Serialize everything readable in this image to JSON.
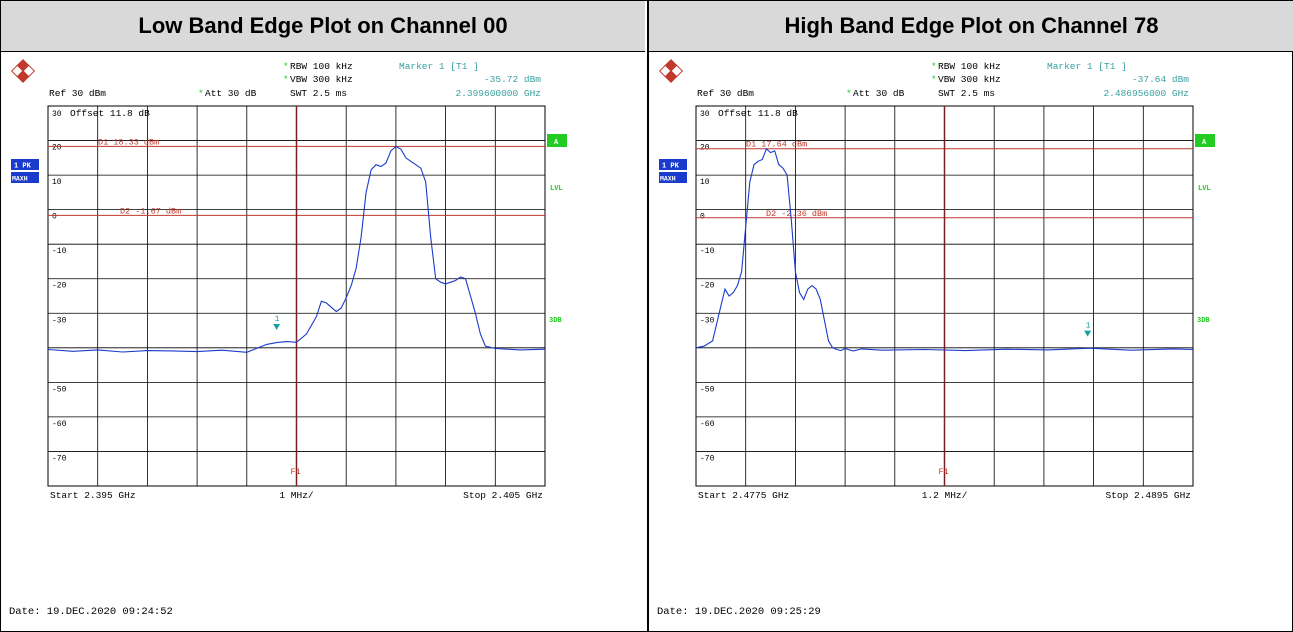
{
  "panels": [
    {
      "title": "Low Band Edge Plot on Channel 00",
      "header": {
        "rbw": "RBW 100 kHz",
        "vbw": "VBW 300 kHz",
        "swt": "SWT 2.5 ms",
        "ref": "Ref  30 dBm",
        "att": "Att  30 dB",
        "marker_title": "Marker 1 [T1 ]",
        "marker_level": "-35.72 dBm",
        "marker_freq": "2.399600000 GHz",
        "offset": "Offset  11.8 dB"
      },
      "side_labels": {
        "trace": "1 PK",
        "mode": "MAXH",
        "a": "A",
        "lvl": "LVL",
        "db3": "3DB"
      },
      "footer": {
        "start": "Start 2.395 GHz",
        "span": "1 MHz/",
        "stop": "Stop 2.405 GHz"
      },
      "date": "Date: 19.DEC.2020  09:24:52",
      "line_labels": {
        "d1": "D1  18.33 dBm",
        "d2": "D2  -1.67 dBm",
        "f1": "F1",
        "marker": "1"
      },
      "colors": {
        "trace": "#1a3bcc",
        "lines": "#c0392b",
        "marker": "#1aa0a0",
        "info": "#3aa0a0",
        "green": "#22cc22"
      },
      "chart_data": {
        "type": "line",
        "title": "Low Band Edge Plot on Channel 00",
        "x_unit": "GHz",
        "xlim": [
          2.395,
          2.405
        ],
        "ylim": [
          -80,
          30
        ],
        "y_ticks": [
          30,
          20,
          10,
          0,
          -10,
          -20,
          -30,
          -50,
          -60,
          -70
        ],
        "lines": {
          "D1": 18.33,
          "D2": -1.67,
          "F1_x": 2.4
        },
        "marker": {
          "x": 2.3996,
          "y": -35.72
        },
        "series": [
          {
            "x": [
              2.395,
              2.3955,
              2.396,
              2.3965,
              2.397,
              2.3975,
              2.398,
              2.3985,
              2.399,
              2.3994,
              2.3996,
              2.3998,
              2.4,
              2.4002,
              2.4004,
              2.4005,
              2.4006,
              2.4008,
              2.4009,
              2.401,
              2.4011,
              2.4012,
              2.4013,
              2.4014,
              2.4015,
              2.4016,
              2.4017,
              2.4018,
              2.4019,
              2.402,
              2.4021,
              2.4022,
              2.4023,
              2.4024,
              2.4025,
              2.4026,
              2.4027,
              2.4028,
              2.4029,
              2.403,
              2.4031,
              2.4032,
              2.4033,
              2.4034,
              2.4035,
              2.4036,
              2.4037,
              2.4038,
              2.404,
              2.4045,
              2.405
            ],
            "y": [
              -40.5,
              -41,
              -40.6,
              -41.2,
              -40.8,
              -40.9,
              -41.1,
              -40.7,
              -41.3,
              -39,
              -38.5,
              -38.2,
              -38.4,
              -36,
              -31,
              -26.5,
              -27,
              -29.5,
              -28.5,
              -25.5,
              -22,
              -17,
              -8,
              5,
              11.5,
              13,
              12.5,
              13.5,
              17,
              18.3,
              17.5,
              15,
              14,
              13,
              12,
              8,
              -8,
              -20,
              -21,
              -21.5,
              -21,
              -20.5,
              -19.5,
              -20,
              -25,
              -30,
              -36,
              -39.5,
              -40.2,
              -40.6,
              -40.4
            ]
          }
        ]
      }
    },
    {
      "title": "High Band Edge Plot on Channel 78",
      "header": {
        "rbw": "RBW 100 kHz",
        "vbw": "VBW 300 kHz",
        "swt": "SWT 2.5 ms",
        "ref": "Ref  30 dBm",
        "att": "Att  30 dB",
        "marker_title": "Marker 1 [T1 ]",
        "marker_level": "-37.64 dBm",
        "marker_freq": "2.486956000 GHz",
        "offset": "Offset  11.8 dB"
      },
      "side_labels": {
        "trace": "1 PK",
        "mode": "MAXH",
        "a": "A",
        "lvl": "LVL",
        "db3": "3DB"
      },
      "footer": {
        "start": "Start 2.4775 GHz",
        "span": "1.2 MHz/",
        "stop": "Stop 2.4895 GHz"
      },
      "date": "Date: 19.DEC.2020  09:25:29",
      "line_labels": {
        "d1": "D1  17.64 dBm",
        "d2": "D2  -2.36 dBm",
        "f1": "F1",
        "marker": "1"
      },
      "colors": {
        "trace": "#1a3bcc",
        "lines": "#c0392b",
        "marker": "#1aa0a0",
        "info": "#3aa0a0",
        "green": "#22cc22"
      },
      "chart_data": {
        "type": "line",
        "title": "High Band Edge Plot on Channel 78",
        "x_unit": "GHz",
        "xlim": [
          2.4775,
          2.4895
        ],
        "ylim": [
          -80,
          30
        ],
        "y_ticks": [
          30,
          20,
          10,
          0,
          -10,
          -20,
          -30,
          -50,
          -60,
          -70
        ],
        "lines": {
          "D1": 17.64,
          "D2": -2.36,
          "F1_x": 2.4835
        },
        "marker": {
          "x": 2.486956,
          "y": -37.64
        },
        "series": [
          {
            "x": [
              2.4775,
              2.4777,
              2.4779,
              2.478,
              2.4781,
              2.4782,
              2.4783,
              2.4784,
              2.4785,
              2.4786,
              2.4787,
              2.4788,
              2.4789,
              2.479,
              2.4791,
              2.4792,
              2.4793,
              2.4794,
              2.4795,
              2.4796,
              2.4797,
              2.4798,
              2.4799,
              2.48,
              2.4801,
              2.4802,
              2.4803,
              2.4804,
              2.4805,
              2.4806,
              2.4807,
              2.4808,
              2.4809,
              2.481,
              2.4811,
              2.4812,
              2.4813,
              2.4815,
              2.482,
              2.483,
              2.484,
              2.485,
              2.486,
              2.487,
              2.488,
              2.489,
              2.4895
            ],
            "y": [
              -40,
              -39.5,
              -38,
              -33,
              -28,
              -23,
              -25,
              -24,
              -22,
              -18,
              -5,
              8,
              13,
              14,
              14.5,
              17.6,
              16.5,
              17,
              13,
              12,
              10,
              -3,
              -18,
              -24,
              -26,
              -23,
              -22,
              -23,
              -26,
              -32,
              -38,
              -40,
              -40.5,
              -40.8,
              -40.2,
              -40.6,
              -40.9,
              -40.3,
              -40.7,
              -40.5,
              -40.8,
              -40.4,
              -40.6,
              -40.1,
              -40.7,
              -40.3,
              -40.5
            ]
          }
        ]
      }
    }
  ]
}
